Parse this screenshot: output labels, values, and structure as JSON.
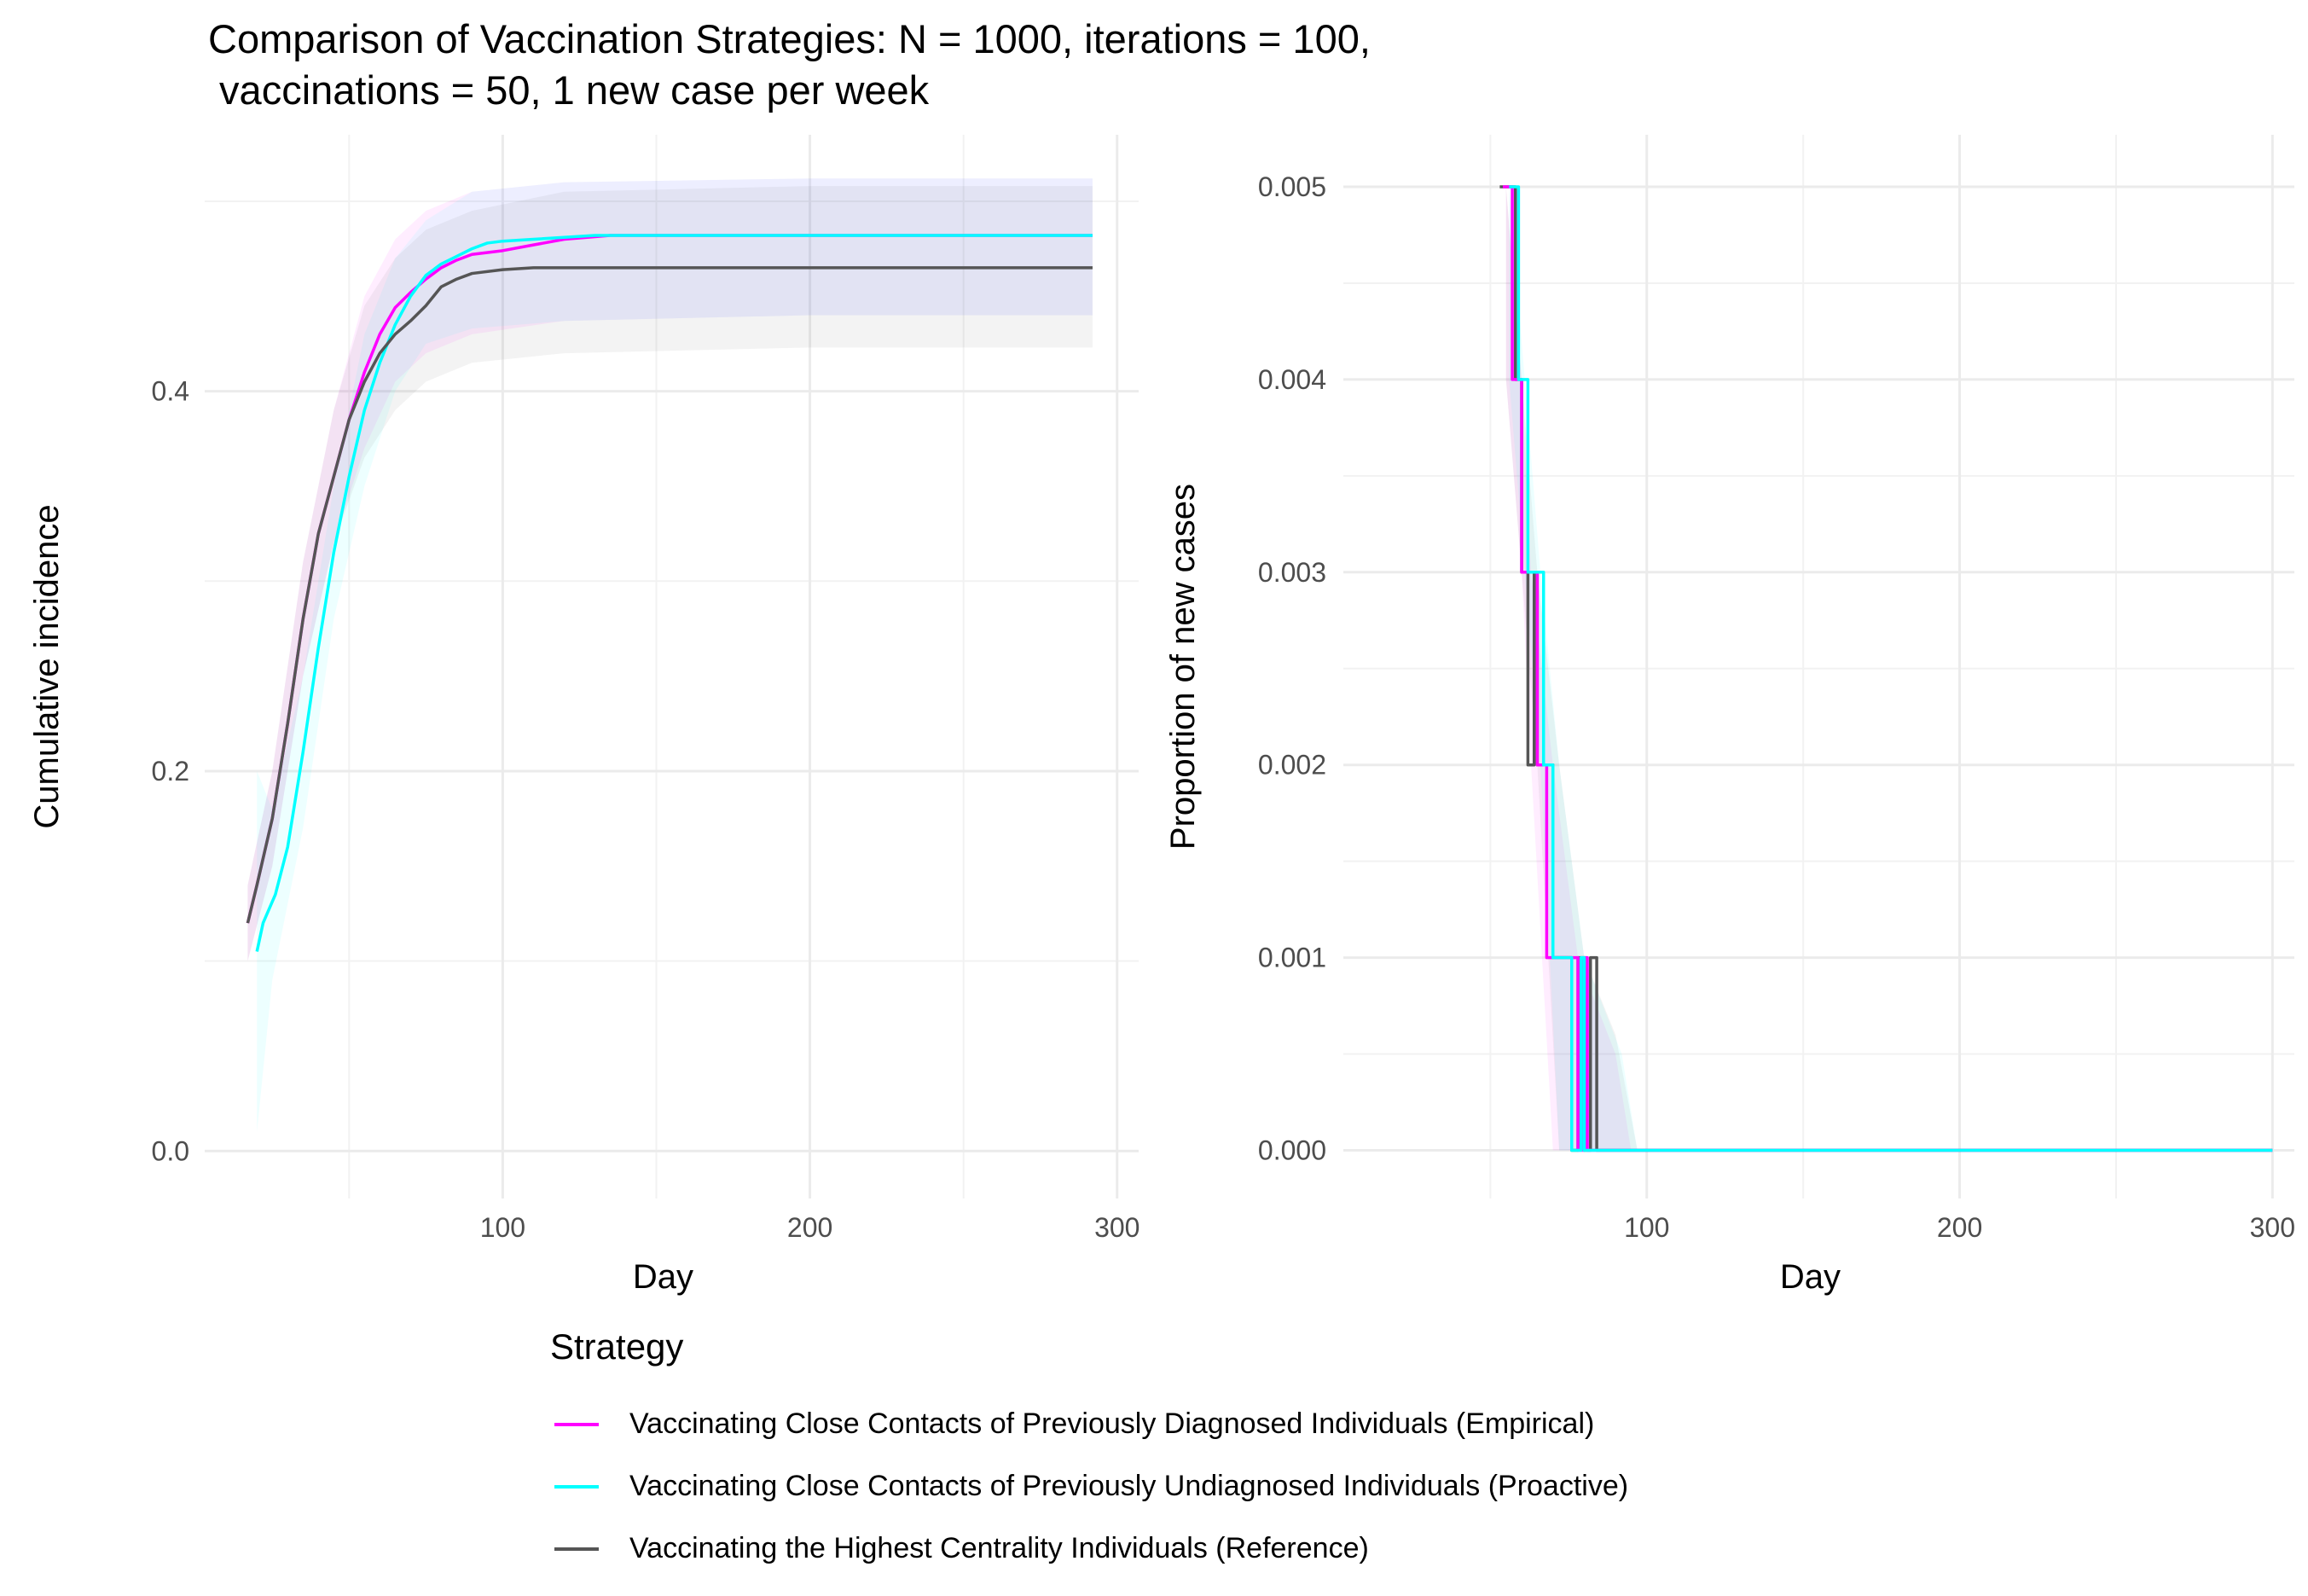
{
  "title": "Comparison of Vaccination Strategies: N = 1000, iterations = 100,\n vaccinations = 50, 1 new case per week",
  "colors": {
    "empirical": "#ff00ff",
    "proactive": "#00ffff",
    "reference": "#555555",
    "grid_major": "#ebebeb",
    "grid_minor": "#f2f2f2"
  },
  "legend": {
    "title": "Strategy",
    "position": "bottom",
    "items": [
      {
        "label": "Vaccinating Close Contacts of Previously Diagnosed Individuals (Empirical)",
        "color_key": "empirical"
      },
      {
        "label": "Vaccinating Close Contacts of Previously Undiagnosed Individuals (Proactive)",
        "color_key": "proactive"
      },
      {
        "label": "Vaccinating the Highest Centrality Individuals (Reference)",
        "color_key": "reference"
      }
    ]
  },
  "chart_data": [
    {
      "type": "line",
      "xlabel": "Day",
      "ylabel": "Cumulative incidence",
      "xlim": [
        3,
        307
      ],
      "ylim": [
        -0.025,
        0.535
      ],
      "x_ticks": [
        100,
        200,
        300
      ],
      "y_ticks": [
        0.0,
        0.2,
        0.4
      ],
      "y_tick_labels": [
        "0.0",
        "0.2",
        "0.4"
      ],
      "grid": true,
      "series": [
        {
          "name": "Vaccinating Close Contacts of Previously Diagnosed Individuals (Empirical)",
          "color_key": "empirical",
          "points": [
            [
              17,
              0.12
            ],
            [
              20,
              0.14
            ],
            [
              25,
              0.175
            ],
            [
              30,
              0.225
            ],
            [
              35,
              0.28
            ],
            [
              40,
              0.325
            ],
            [
              45,
              0.355
            ],
            [
              50,
              0.385
            ],
            [
              55,
              0.41
            ],
            [
              60,
              0.43
            ],
            [
              65,
              0.444
            ],
            [
              70,
              0.452
            ],
            [
              75,
              0.459
            ],
            [
              80,
              0.465
            ],
            [
              85,
              0.469
            ],
            [
              90,
              0.472
            ],
            [
              100,
              0.474
            ],
            [
              110,
              0.477
            ],
            [
              120,
              0.48
            ],
            [
              135,
              0.482
            ],
            [
              200,
              0.482
            ],
            [
              292,
              0.482
            ]
          ],
          "ribbon": [
            [
              17,
              0.1,
              0.14
            ],
            [
              25,
              0.15,
              0.2
            ],
            [
              35,
              0.25,
              0.31
            ],
            [
              45,
              0.32,
              0.39
            ],
            [
              55,
              0.37,
              0.45
            ],
            [
              65,
              0.405,
              0.48
            ],
            [
              75,
              0.42,
              0.495
            ],
            [
              90,
              0.43,
              0.505
            ],
            [
              120,
              0.437,
              0.51
            ],
            [
              200,
              0.44,
              0.512
            ],
            [
              292,
              0.44,
              0.512
            ]
          ]
        },
        {
          "name": "Vaccinating Close Contacts of Previously Undiagnosed Individuals (Proactive)",
          "color_key": "proactive",
          "points": [
            [
              20,
              0.105
            ],
            [
              22,
              0.12
            ],
            [
              26,
              0.135
            ],
            [
              30,
              0.16
            ],
            [
              35,
              0.21
            ],
            [
              40,
              0.265
            ],
            [
              45,
              0.315
            ],
            [
              50,
              0.355
            ],
            [
              55,
              0.39
            ],
            [
              60,
              0.415
            ],
            [
              65,
              0.435
            ],
            [
              70,
              0.45
            ],
            [
              75,
              0.461
            ],
            [
              80,
              0.467
            ],
            [
              85,
              0.471
            ],
            [
              90,
              0.475
            ],
            [
              95,
              0.478
            ],
            [
              100,
              0.479
            ],
            [
              110,
              0.48
            ],
            [
              130,
              0.482
            ],
            [
              200,
              0.482
            ],
            [
              292,
              0.482
            ]
          ],
          "ribbon": [
            [
              20,
              0.01,
              0.2
            ],
            [
              25,
              0.09,
              0.18
            ],
            [
              35,
              0.17,
              0.25
            ],
            [
              45,
              0.28,
              0.35
            ],
            [
              55,
              0.35,
              0.43
            ],
            [
              65,
              0.4,
              0.47
            ],
            [
              75,
              0.425,
              0.49
            ],
            [
              90,
              0.433,
              0.505
            ],
            [
              120,
              0.437,
              0.51
            ],
            [
              200,
              0.44,
              0.512
            ],
            [
              292,
              0.44,
              0.512
            ]
          ]
        },
        {
          "name": "Vaccinating the Highest Centrality Individuals (Reference)",
          "color_key": "reference",
          "points": [
            [
              17,
              0.12
            ],
            [
              20,
              0.14
            ],
            [
              25,
              0.175
            ],
            [
              30,
              0.225
            ],
            [
              35,
              0.28
            ],
            [
              40,
              0.325
            ],
            [
              45,
              0.355
            ],
            [
              50,
              0.385
            ],
            [
              55,
              0.405
            ],
            [
              60,
              0.42
            ],
            [
              65,
              0.43
            ],
            [
              70,
              0.437
            ],
            [
              75,
              0.445
            ],
            [
              80,
              0.455
            ],
            [
              85,
              0.459
            ],
            [
              90,
              0.462
            ],
            [
              100,
              0.464
            ],
            [
              110,
              0.465
            ],
            [
              200,
              0.465
            ],
            [
              292,
              0.465
            ]
          ],
          "ribbon": [
            [
              17,
              0.1,
              0.14
            ],
            [
              25,
              0.15,
              0.2
            ],
            [
              35,
              0.25,
              0.31
            ],
            [
              45,
              0.32,
              0.39
            ],
            [
              55,
              0.365,
              0.445
            ],
            [
              65,
              0.39,
              0.47
            ],
            [
              75,
              0.405,
              0.485
            ],
            [
              90,
              0.415,
              0.495
            ],
            [
              120,
              0.42,
              0.505
            ],
            [
              200,
              0.423,
              0.508
            ],
            [
              292,
              0.423,
              0.508
            ]
          ]
        }
      ]
    },
    {
      "type": "line",
      "xlabel": "Day",
      "ylabel": "Proportion of new cases",
      "xlim": [
        3,
        307
      ],
      "ylim": [
        -0.00025,
        0.00527
      ],
      "x_ticks": [
        100,
        200,
        300
      ],
      "y_ticks": [
        0.0,
        0.001,
        0.002,
        0.003,
        0.004,
        0.005
      ],
      "y_tick_labels": [
        "0.000",
        "0.001",
        "0.002",
        "0.003",
        "0.004",
        "0.005"
      ],
      "grid": true,
      "series": [
        {
          "name": "Vaccinating the Highest Centrality Individuals (Reference)",
          "color_key": "reference",
          "points": [
            [
              53,
              0.005
            ],
            [
              58,
              0.005
            ],
            [
              58,
              0.004
            ],
            [
              60,
              0.004
            ],
            [
              60,
              0.003
            ],
            [
              62,
              0.003
            ],
            [
              62,
              0.002
            ],
            [
              64,
              0.002
            ],
            [
              64,
              0.003
            ],
            [
              65,
              0.003
            ],
            [
              65,
              0.002
            ],
            [
              70,
              0.002
            ],
            [
              70,
              0.001
            ],
            [
              76,
              0.001
            ],
            [
              76,
              0.0
            ],
            [
              78,
              0.0
            ],
            [
              78,
              0.001
            ],
            [
              80,
              0.001
            ],
            [
              80,
              0.0
            ],
            [
              82,
              0.0
            ],
            [
              82,
              0.001
            ],
            [
              84,
              0.001
            ],
            [
              84,
              0.0
            ],
            [
              300,
              0.0
            ]
          ],
          "ribbon": [
            [
              55,
              0.004,
              0.005
            ],
            [
              60,
              0.003,
              0.004
            ],
            [
              65,
              0.002,
              0.003
            ],
            [
              72,
              0.0,
              0.002
            ],
            [
              80,
              0.0,
              0.001
            ],
            [
              90,
              0.0,
              0.0006
            ],
            [
              97,
              0.0,
              0.0
            ]
          ]
        },
        {
          "name": "Vaccinating Close Contacts of Previously Diagnosed Individuals (Empirical)",
          "color_key": "empirical",
          "points": [
            [
              54,
              0.005
            ],
            [
              57,
              0.005
            ],
            [
              57,
              0.004
            ],
            [
              60,
              0.004
            ],
            [
              60,
              0.003
            ],
            [
              65,
              0.003
            ],
            [
              65,
              0.002
            ],
            [
              68,
              0.002
            ],
            [
              68,
              0.001
            ],
            [
              78,
              0.001
            ],
            [
              78,
              0.0
            ],
            [
              80,
              0.0
            ],
            [
              80,
              0.001
            ],
            [
              81,
              0.001
            ],
            [
              81,
              0.0
            ],
            [
              300,
              0.0
            ]
          ],
          "ribbon": [
            [
              55,
              0.004,
              0.005
            ],
            [
              60,
              0.003,
              0.004
            ],
            [
              63,
              0.002,
              0.003
            ],
            [
              70,
              0.0,
              0.002
            ],
            [
              78,
              0.0,
              0.001
            ],
            [
              90,
              0.0,
              0.0005
            ],
            [
              95,
              0.0,
              0.0
            ]
          ]
        },
        {
          "name": "Vaccinating Close Contacts of Previously Undiagnosed Individuals (Proactive)",
          "color_key": "proactive",
          "points": [
            [
              56,
              0.005
            ],
            [
              59,
              0.005
            ],
            [
              59,
              0.004
            ],
            [
              62,
              0.004
            ],
            [
              62,
              0.003
            ],
            [
              67,
              0.003
            ],
            [
              67,
              0.002
            ],
            [
              70,
              0.002
            ],
            [
              70,
              0.001
            ],
            [
              76,
              0.001
            ],
            [
              76,
              0.0
            ],
            [
              79,
              0.0
            ],
            [
              79,
              0.001
            ],
            [
              80,
              0.001
            ],
            [
              80,
              0.0
            ],
            [
              300,
              0.0
            ]
          ],
          "ribbon": [
            [
              56,
              0.004,
              0.005
            ],
            [
              61,
              0.003,
              0.004
            ],
            [
              66,
              0.002,
              0.003
            ],
            [
              72,
              0.0,
              0.002
            ],
            [
              80,
              0.0,
              0.001
            ],
            [
              92,
              0.0,
              0.0005
            ],
            [
              97,
              0.0,
              0.0
            ]
          ]
        }
      ]
    }
  ]
}
